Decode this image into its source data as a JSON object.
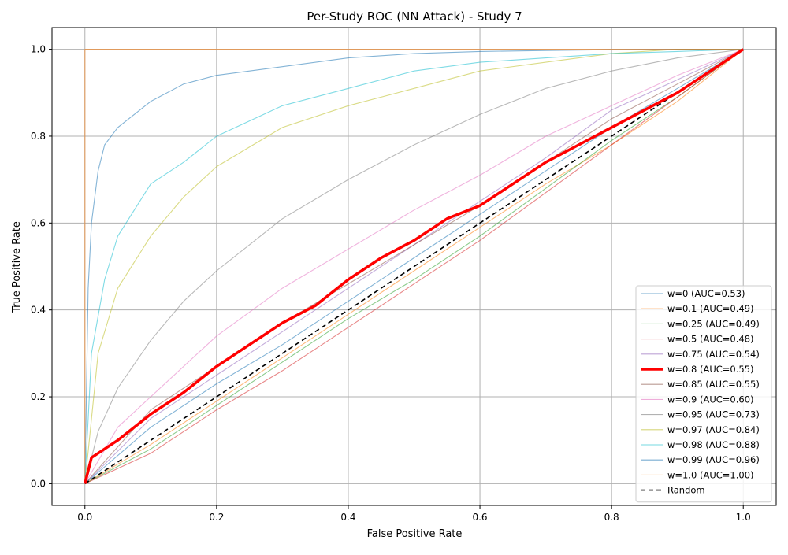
{
  "chart_data": {
    "type": "line",
    "title": "Per-Study ROC (NN Attack) - Study 7",
    "xlabel": "False Positive Rate",
    "ylabel": "True Positive Rate",
    "xlim": [
      -0.05,
      1.05
    ],
    "ylim": [
      -0.05,
      1.05
    ],
    "xticks": [
      "0.0",
      "0.2",
      "0.4",
      "0.6",
      "0.8",
      "1.0"
    ],
    "yticks": [
      "0.0",
      "0.2",
      "0.4",
      "0.6",
      "0.8",
      "1.0"
    ],
    "grid": true,
    "legend_position": "lower-right",
    "series": [
      {
        "name": "w=0 (AUC=0.53)",
        "color": "#1f77b4",
        "x": [
          0,
          0.1,
          0.2,
          0.3,
          0.4,
          0.5,
          0.6,
          0.7,
          0.8,
          0.9,
          1.0
        ],
        "y": [
          0,
          0.13,
          0.23,
          0.32,
          0.42,
          0.52,
          0.62,
          0.72,
          0.82,
          0.91,
          1.0
        ]
      },
      {
        "name": "w=0.1 (AUC=0.49)",
        "color": "#ff7f0e",
        "x": [
          0,
          0.1,
          0.2,
          0.3,
          0.4,
          0.5,
          0.6,
          0.7,
          0.8,
          0.9,
          1.0
        ],
        "y": [
          0,
          0.09,
          0.19,
          0.29,
          0.39,
          0.49,
          0.59,
          0.69,
          0.78,
          0.88,
          1.0
        ]
      },
      {
        "name": "w=0.25 (AUC=0.49)",
        "color": "#2ca02c",
        "x": [
          0,
          0.1,
          0.2,
          0.3,
          0.4,
          0.5,
          0.6,
          0.7,
          0.8,
          0.9,
          1.0
        ],
        "y": [
          0,
          0.08,
          0.18,
          0.28,
          0.38,
          0.47,
          0.57,
          0.68,
          0.79,
          0.89,
          1.0
        ]
      },
      {
        "name": "w=0.5 (AUC=0.48)",
        "color": "#d62728",
        "x": [
          0,
          0.1,
          0.2,
          0.3,
          0.4,
          0.5,
          0.6,
          0.7,
          0.8,
          0.9,
          1.0
        ],
        "y": [
          0,
          0.07,
          0.17,
          0.26,
          0.36,
          0.46,
          0.56,
          0.67,
          0.78,
          0.89,
          1.0
        ]
      },
      {
        "name": "w=0.75 (AUC=0.54)",
        "color": "#9467bd",
        "x": [
          0,
          0.1,
          0.2,
          0.3,
          0.4,
          0.5,
          0.6,
          0.7,
          0.8,
          0.9,
          1.0
        ],
        "y": [
          0,
          0.15,
          0.25,
          0.35,
          0.45,
          0.55,
          0.65,
          0.75,
          0.86,
          0.93,
          1.0
        ]
      },
      {
        "name": "w=0.8 (AUC=0.55)",
        "color": "#ff0000",
        "highlight": true,
        "x": [
          0,
          0.01,
          0.05,
          0.1,
          0.15,
          0.2,
          0.25,
          0.3,
          0.35,
          0.4,
          0.45,
          0.5,
          0.55,
          0.6,
          0.65,
          0.7,
          0.75,
          0.8,
          0.85,
          0.9,
          0.95,
          1.0
        ],
        "y": [
          0,
          0.06,
          0.1,
          0.16,
          0.21,
          0.27,
          0.32,
          0.37,
          0.41,
          0.47,
          0.52,
          0.56,
          0.61,
          0.64,
          0.69,
          0.74,
          0.78,
          0.82,
          0.86,
          0.9,
          0.95,
          1.0
        ]
      },
      {
        "name": "w=0.85 (AUC=0.55)",
        "color": "#8c564b",
        "x": [
          0,
          0.1,
          0.2,
          0.3,
          0.4,
          0.5,
          0.6,
          0.7,
          0.8,
          0.9,
          1.0
        ],
        "y": [
          0,
          0.17,
          0.27,
          0.37,
          0.46,
          0.55,
          0.64,
          0.74,
          0.84,
          0.92,
          1.0
        ]
      },
      {
        "name": "w=0.9 (AUC=0.60)",
        "color": "#e377c2",
        "x": [
          0,
          0.05,
          0.1,
          0.2,
          0.3,
          0.4,
          0.5,
          0.6,
          0.7,
          0.8,
          0.9,
          1.0
        ],
        "y": [
          0,
          0.13,
          0.2,
          0.34,
          0.45,
          0.54,
          0.63,
          0.71,
          0.8,
          0.87,
          0.94,
          1.0
        ]
      },
      {
        "name": "w=0.95 (AUC=0.73)",
        "color": "#7f7f7f",
        "x": [
          0,
          0.02,
          0.05,
          0.1,
          0.15,
          0.2,
          0.3,
          0.4,
          0.5,
          0.6,
          0.7,
          0.8,
          0.9,
          1.0
        ],
        "y": [
          0,
          0.12,
          0.22,
          0.33,
          0.42,
          0.49,
          0.61,
          0.7,
          0.78,
          0.85,
          0.91,
          0.95,
          0.98,
          1.0
        ]
      },
      {
        "name": "w=0.97 (AUC=0.84)",
        "color": "#bcbd22",
        "x": [
          0,
          0.02,
          0.05,
          0.1,
          0.15,
          0.2,
          0.3,
          0.4,
          0.5,
          0.6,
          0.7,
          0.8,
          0.9,
          1.0
        ],
        "y": [
          0,
          0.3,
          0.45,
          0.57,
          0.66,
          0.73,
          0.82,
          0.87,
          0.91,
          0.95,
          0.97,
          0.99,
          1.0,
          1.0
        ]
      },
      {
        "name": "w=0.98 (AUC=0.88)",
        "color": "#17becf",
        "x": [
          0,
          0.01,
          0.03,
          0.05,
          0.1,
          0.15,
          0.2,
          0.3,
          0.4,
          0.5,
          0.6,
          0.7,
          0.8,
          0.9,
          1.0
        ],
        "y": [
          0,
          0.3,
          0.47,
          0.57,
          0.69,
          0.74,
          0.8,
          0.87,
          0.91,
          0.95,
          0.97,
          0.98,
          0.99,
          0.995,
          1.0
        ]
      },
      {
        "name": "w=0.99 (AUC=0.96)",
        "color": "#1f77b4",
        "x": [
          0,
          0.005,
          0.01,
          0.02,
          0.03,
          0.05,
          0.1,
          0.15,
          0.2,
          0.3,
          0.4,
          0.5,
          0.6,
          0.7,
          0.8,
          0.9,
          1.0
        ],
        "y": [
          0,
          0.45,
          0.6,
          0.72,
          0.78,
          0.82,
          0.88,
          0.92,
          0.94,
          0.96,
          0.98,
          0.99,
          0.995,
          0.997,
          0.999,
          1.0,
          1.0
        ]
      },
      {
        "name": "w=1.0 (AUC=1.00)",
        "color": "#ff7f0e",
        "x": [
          0,
          0,
          1.0
        ],
        "y": [
          0,
          1.0,
          1.0
        ]
      },
      {
        "name": "Random",
        "color": "#000000",
        "dashed": true,
        "x": [
          0,
          1.0
        ],
        "y": [
          0,
          1.0
        ]
      }
    ]
  }
}
